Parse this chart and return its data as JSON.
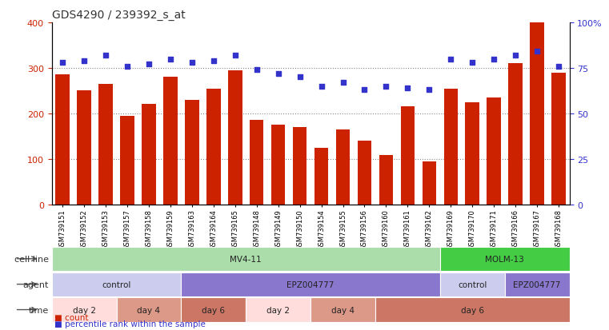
{
  "title": "GDS4290 / 239392_s_at",
  "samples": [
    "GSM739151",
    "GSM739152",
    "GSM739153",
    "GSM739157",
    "GSM739158",
    "GSM739159",
    "GSM739163",
    "GSM739164",
    "GSM739165",
    "GSM739148",
    "GSM739149",
    "GSM739150",
    "GSM739154",
    "GSM739155",
    "GSM739156",
    "GSM739160",
    "GSM739161",
    "GSM739162",
    "GSM739169",
    "GSM739170",
    "GSM739171",
    "GSM739166",
    "GSM739167",
    "GSM739168"
  ],
  "counts": [
    285,
    250,
    265,
    195,
    220,
    280,
    230,
    255,
    295,
    185,
    175,
    170,
    125,
    165,
    140,
    108,
    215,
    95,
    255,
    225,
    235,
    310,
    400,
    290
  ],
  "percentile_ranks": [
    78,
    79,
    82,
    76,
    77,
    80,
    78,
    79,
    82,
    74,
    72,
    70,
    65,
    67,
    63,
    65,
    64,
    63,
    80,
    78,
    80,
    82,
    84,
    76
  ],
  "bar_color": "#cc2200",
  "dot_color": "#3333cc",
  "ylim_left": [
    0,
    400
  ],
  "ylim_right": [
    0,
    100
  ],
  "yticks_left": [
    0,
    100,
    200,
    300,
    400
  ],
  "yticks_right": [
    0,
    25,
    50,
    75,
    100
  ],
  "ytick_labels_right": [
    "0",
    "25",
    "50",
    "75",
    "100%"
  ],
  "cell_line_row": {
    "label": "cell line",
    "segments": [
      {
        "text": "MV4-11",
        "start": 0,
        "end": 18,
        "color": "#aaddaa"
      },
      {
        "text": "MOLM-13",
        "start": 18,
        "end": 24,
        "color": "#44cc44"
      }
    ]
  },
  "agent_row": {
    "label": "agent",
    "segments": [
      {
        "text": "control",
        "start": 0,
        "end": 6,
        "color": "#ccccee"
      },
      {
        "text": "EPZ004777",
        "start": 6,
        "end": 18,
        "color": "#8877cc"
      },
      {
        "text": "control",
        "start": 18,
        "end": 21,
        "color": "#ccccee"
      },
      {
        "text": "EPZ004777",
        "start": 21,
        "end": 24,
        "color": "#8877cc"
      }
    ]
  },
  "time_row": {
    "label": "time",
    "segments": [
      {
        "text": "day 2",
        "start": 0,
        "end": 3,
        "color": "#ffdddd"
      },
      {
        "text": "day 4",
        "start": 3,
        "end": 6,
        "color": "#dd9988"
      },
      {
        "text": "day 6",
        "start": 6,
        "end": 9,
        "color": "#cc7766"
      },
      {
        "text": "day 2",
        "start": 9,
        "end": 12,
        "color": "#ffdddd"
      },
      {
        "text": "day 4",
        "start": 12,
        "end": 15,
        "color": "#dd9988"
      },
      {
        "text": "day 6",
        "start": 15,
        "end": 24,
        "color": "#cc7766"
      }
    ]
  },
  "legend_items": [
    {
      "color": "#cc2200",
      "label": "count"
    },
    {
      "color": "#3333cc",
      "label": "percentile rank within the sample"
    }
  ],
  "background_color": "#ffffff",
  "grid_color": "#888888"
}
